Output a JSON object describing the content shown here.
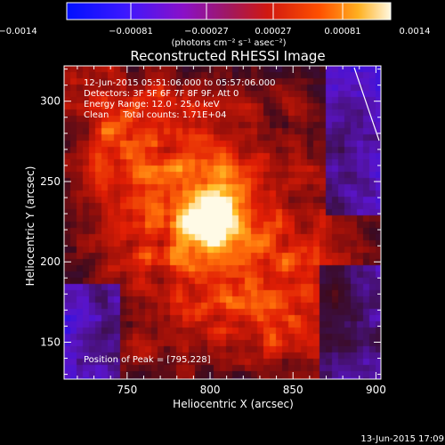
{
  "colorbar": {
    "ticks": [
      "−0.0014",
      "−0.00081",
      "−0.00027",
      "0.00027",
      "0.00081",
      "0.0014"
    ],
    "units_label": "(photons cm⁻² s⁻¹ asec⁻²)"
  },
  "image": {
    "title": "Reconstructed RHESSI Image",
    "info_lines": [
      "12-Jun-2015 05:51:06.000 to 05:57:06.000",
      "Detectors: 3F 5F 6F 7F 8F 9F, Att 0",
      "Energy Range: 12.0 - 25.0 keV",
      "Clean     Total counts: 1.71E+04"
    ],
    "peak_label": "Position of Peak = [795,228]",
    "footer_date": "13-Jun-2015 17:09"
  },
  "chart_data": {
    "type": "heatmap",
    "title": "Reconstructed RHESSI Image",
    "xlabel": "Heliocentric X (arcsec)",
    "ylabel": "Heliocentric Y (arcsec)",
    "xlim": [
      712,
      903
    ],
    "ylim": [
      127,
      322
    ],
    "x_ticks": [
      "750",
      "800",
      "850",
      "900"
    ],
    "x_tick_values": [
      750,
      800,
      850,
      900
    ],
    "y_ticks": [
      "150",
      "200",
      "250",
      "300"
    ],
    "y_tick_values": [
      150,
      200,
      250,
      300
    ],
    "peak": [
      795,
      228
    ],
    "colors": {
      "negative_low": "#0010ff",
      "negative_mid": "#8a00c0",
      "zero": "#2a1040",
      "positive_mid": "#e82000",
      "positive_high": "#ffa010",
      "max": "#ffffff"
    }
  }
}
